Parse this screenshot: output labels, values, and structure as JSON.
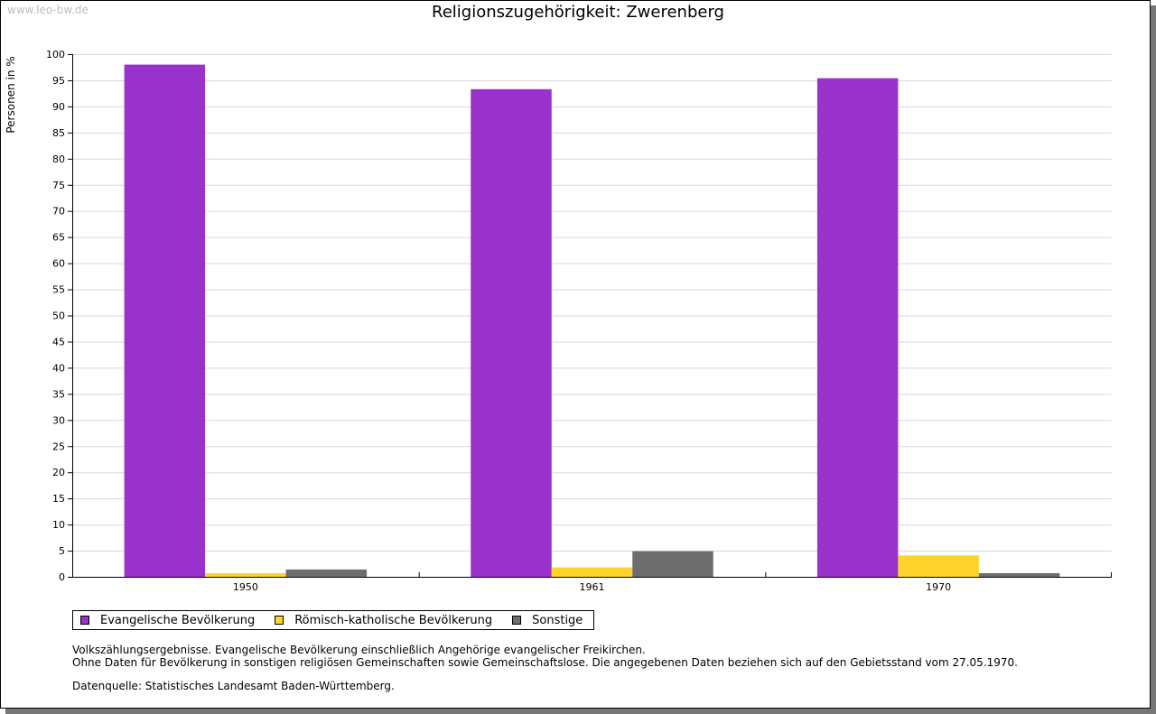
{
  "watermark": "www.leo-bw.de",
  "chart_data": {
    "type": "bar",
    "title": "Religionszugehörigkeit: Zwerenberg",
    "xlabel": "",
    "ylabel": "Personen in %",
    "ylim": [
      0,
      100
    ],
    "yticks": [
      0,
      5,
      10,
      15,
      20,
      25,
      30,
      35,
      40,
      45,
      50,
      55,
      60,
      65,
      70,
      75,
      80,
      85,
      90,
      95,
      100
    ],
    "grid": true,
    "legend_position": "bottom-left",
    "categories": [
      "1950",
      "1961",
      "1970"
    ],
    "series": [
      {
        "name": "Evangelische Bevölkerung",
        "color": "#9932cc",
        "values": [
          98.0,
          93.3,
          95.4
        ]
      },
      {
        "name": "Römisch-katholische Bevölkerung",
        "color": "#ffd42a",
        "values": [
          0.7,
          1.8,
          4.1
        ]
      },
      {
        "name": "Sonstige",
        "color": "#6e6e6e",
        "values": [
          1.4,
          4.9,
          0.7
        ]
      }
    ]
  },
  "notes": {
    "line1": "Volkszählungsergebnisse. Evangelische Bevölkerung einschließlich Angehörige evangelischer Freikirchen.",
    "line2": "Ohne Daten für Bevölkerung in sonstigen religiösen Gemeinschaften sowie Gemeinschaftslose. Die angegebenen Daten beziehen sich auf den Gebietsstand vom 27.05.1970.",
    "source": "Datenquelle: Statistisches Landesamt Baden-Württemberg."
  }
}
